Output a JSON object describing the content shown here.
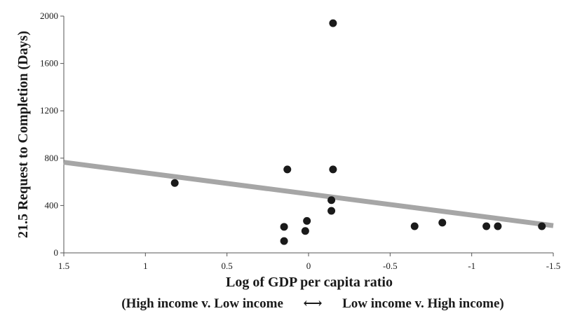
{
  "chart_data": {
    "type": "scatter",
    "xlabel": "Log of GDP per capita ratio",
    "xlabel_sub": "(High income v. Low income      ⟷      Low income v. High income)",
    "ylabel": "21.5 Request to Completion (Days)",
    "xlim": [
      1.5,
      -1.5
    ],
    "x_reversed": true,
    "ylim": [
      0,
      2000
    ],
    "x_ticks": [
      1.5,
      1,
      0.5,
      0,
      -0.5,
      -1,
      -1.5
    ],
    "x_tick_labels": [
      "1.5",
      "1",
      "0.5",
      "0",
      "-0.5",
      "-1",
      "-1.5"
    ],
    "y_ticks": [
      0,
      400,
      800,
      1200,
      1600,
      2000
    ],
    "y_tick_labels": [
      "0",
      "400",
      "800",
      "1200",
      "1600",
      "2000"
    ],
    "grid": false,
    "points": [
      {
        "x": 0.82,
        "y": 590
      },
      {
        "x": 0.15,
        "y": 220
      },
      {
        "x": 0.15,
        "y": 100
      },
      {
        "x": 0.13,
        "y": 705
      },
      {
        "x": 0.01,
        "y": 270
      },
      {
        "x": 0.02,
        "y": 185
      },
      {
        "x": -0.14,
        "y": 445
      },
      {
        "x": -0.14,
        "y": 355
      },
      {
        "x": -0.15,
        "y": 705
      },
      {
        "x": -0.15,
        "y": 1940
      },
      {
        "x": -0.65,
        "y": 225
      },
      {
        "x": -0.82,
        "y": 255
      },
      {
        "x": -1.09,
        "y": 225
      },
      {
        "x": -1.16,
        "y": 225
      },
      {
        "x": -1.43,
        "y": 225
      }
    ],
    "trendline": {
      "x": [
        1.5,
        -1.5
      ],
      "y": [
        765,
        230
      ]
    },
    "colors": {
      "points": "#1a1a1a",
      "trendline": "#a6a6a6",
      "axis": "#555555"
    }
  }
}
